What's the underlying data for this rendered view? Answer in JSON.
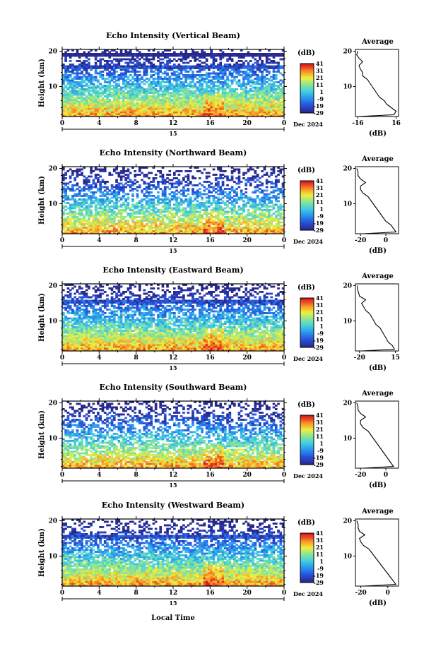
{
  "figure": {
    "xlabel": "Local Time",
    "colorbar_label": "(dB)",
    "colorbar_ticks": [
      "41",
      "31",
      "21",
      "11",
      "1",
      "-9",
      "-19",
      "-29"
    ],
    "avg_title": "Average",
    "avg_xlabel": "(dB)",
    "date_label": "Dec 2024",
    "day_label": "15",
    "x_ticks": [
      "0",
      "4",
      "8",
      "12",
      "16",
      "20",
      "0"
    ],
    "y_ticks": [
      "20",
      "10"
    ]
  },
  "chart_data": [
    {
      "type": "heatmap",
      "title": "Echo Intensity (Vertical Beam)",
      "ylabel": "Height (km)",
      "xlim": [
        0,
        24
      ],
      "ylim": [
        1.5,
        20.5
      ],
      "clim": [
        -29,
        41
      ],
      "avg_ticks": [
        "-16",
        "16"
      ],
      "avg_xlim": [
        -18,
        18
      ],
      "avg_profile": [
        [
          1.5,
          -16
        ],
        [
          2,
          14
        ],
        [
          3,
          16
        ],
        [
          4,
          12
        ],
        [
          5,
          8
        ],
        [
          6,
          6
        ],
        [
          7,
          2
        ],
        [
          8,
          0
        ],
        [
          9,
          -2
        ],
        [
          10,
          -4
        ],
        [
          11,
          -6
        ],
        [
          12,
          -8
        ],
        [
          13,
          -12
        ],
        [
          14,
          -12
        ],
        [
          15,
          -14
        ],
        [
          16,
          -15
        ],
        [
          17,
          -12
        ],
        [
          18,
          -15
        ],
        [
          19,
          -17
        ],
        [
          20,
          -16
        ]
      ]
    },
    {
      "type": "heatmap",
      "title": "Echo Intensity (Northward Beam)",
      "ylabel": "Height (km)",
      "xlim": [
        0,
        24
      ],
      "ylim": [
        1.5,
        20.5
      ],
      "clim": [
        -29,
        41
      ],
      "avg_ticks": [
        "-20",
        "0"
      ],
      "avg_xlim": [
        -24,
        10
      ],
      "avg_profile": [
        [
          1.5,
          -18
        ],
        [
          2,
          8
        ],
        [
          3,
          6
        ],
        [
          4,
          4
        ],
        [
          5,
          0
        ],
        [
          6,
          -2
        ],
        [
          7,
          -4
        ],
        [
          8,
          -6
        ],
        [
          9,
          -8
        ],
        [
          10,
          -10
        ],
        [
          11,
          -12
        ],
        [
          12,
          -14
        ],
        [
          13,
          -18
        ],
        [
          14,
          -20
        ],
        [
          15,
          -20
        ],
        [
          16,
          -16
        ],
        [
          17,
          -20
        ],
        [
          18,
          -22
        ],
        [
          19,
          -22
        ],
        [
          20,
          -23
        ]
      ]
    },
    {
      "type": "heatmap",
      "title": "Echo Intensity (Eastward Beam)",
      "ylabel": "Height (km)",
      "xlim": [
        0,
        24
      ],
      "ylim": [
        1.5,
        20.5
      ],
      "clim": [
        -29,
        41
      ],
      "avg_ticks": [
        "-20",
        "15"
      ],
      "avg_xlim": [
        -24,
        18
      ],
      "avg_profile": [
        [
          1.5,
          -18
        ],
        [
          2,
          14
        ],
        [
          3,
          12
        ],
        [
          4,
          8
        ],
        [
          5,
          6
        ],
        [
          6,
          4
        ],
        [
          7,
          2
        ],
        [
          8,
          0
        ],
        [
          9,
          -4
        ],
        [
          10,
          -6
        ],
        [
          11,
          -8
        ],
        [
          12,
          -10
        ],
        [
          13,
          -14
        ],
        [
          14,
          -16
        ],
        [
          15,
          -18
        ],
        [
          16,
          -14
        ],
        [
          17,
          -20
        ],
        [
          18,
          -21
        ],
        [
          19,
          -22
        ],
        [
          20,
          -22
        ]
      ]
    },
    {
      "type": "heatmap",
      "title": "Echo Intensity (Southward Beam)",
      "ylabel": "Height (km)",
      "xlim": [
        0,
        24
      ],
      "ylim": [
        1.5,
        20.5
      ],
      "clim": [
        -29,
        41
      ],
      "avg_ticks": [
        "-20",
        "0"
      ],
      "avg_xlim": [
        -24,
        10
      ],
      "avg_profile": [
        [
          1.5,
          -18
        ],
        [
          2,
          6
        ],
        [
          3,
          4
        ],
        [
          4,
          2
        ],
        [
          5,
          0
        ],
        [
          6,
          -2
        ],
        [
          7,
          -4
        ],
        [
          8,
          -6
        ],
        [
          9,
          -8
        ],
        [
          10,
          -10
        ],
        [
          11,
          -12
        ],
        [
          12,
          -14
        ],
        [
          13,
          -18
        ],
        [
          14,
          -20
        ],
        [
          15,
          -20
        ],
        [
          16,
          -16
        ],
        [
          17,
          -20
        ],
        [
          18,
          -22
        ],
        [
          19,
          -22
        ],
        [
          20,
          -23
        ]
      ]
    },
    {
      "type": "heatmap",
      "title": "Echo Intensity (Westward Beam)",
      "ylabel": "Height (km)",
      "xlim": [
        0,
        24
      ],
      "ylim": [
        1.5,
        20.5
      ],
      "clim": [
        -29,
        41
      ],
      "avg_ticks": [
        "-20",
        "0"
      ],
      "avg_xlim": [
        -24,
        8
      ],
      "avg_profile": [
        [
          1.5,
          -18
        ],
        [
          2,
          6
        ],
        [
          3,
          4
        ],
        [
          4,
          2
        ],
        [
          5,
          0
        ],
        [
          6,
          -2
        ],
        [
          7,
          -4
        ],
        [
          8,
          -6
        ],
        [
          9,
          -8
        ],
        [
          10,
          -10
        ],
        [
          11,
          -12
        ],
        [
          12,
          -14
        ],
        [
          13,
          -18
        ],
        [
          14,
          -20
        ],
        [
          15,
          -21
        ],
        [
          16,
          -17
        ],
        [
          17,
          -21
        ],
        [
          18,
          -22
        ],
        [
          19,
          -22
        ],
        [
          20,
          -23
        ]
      ]
    }
  ]
}
